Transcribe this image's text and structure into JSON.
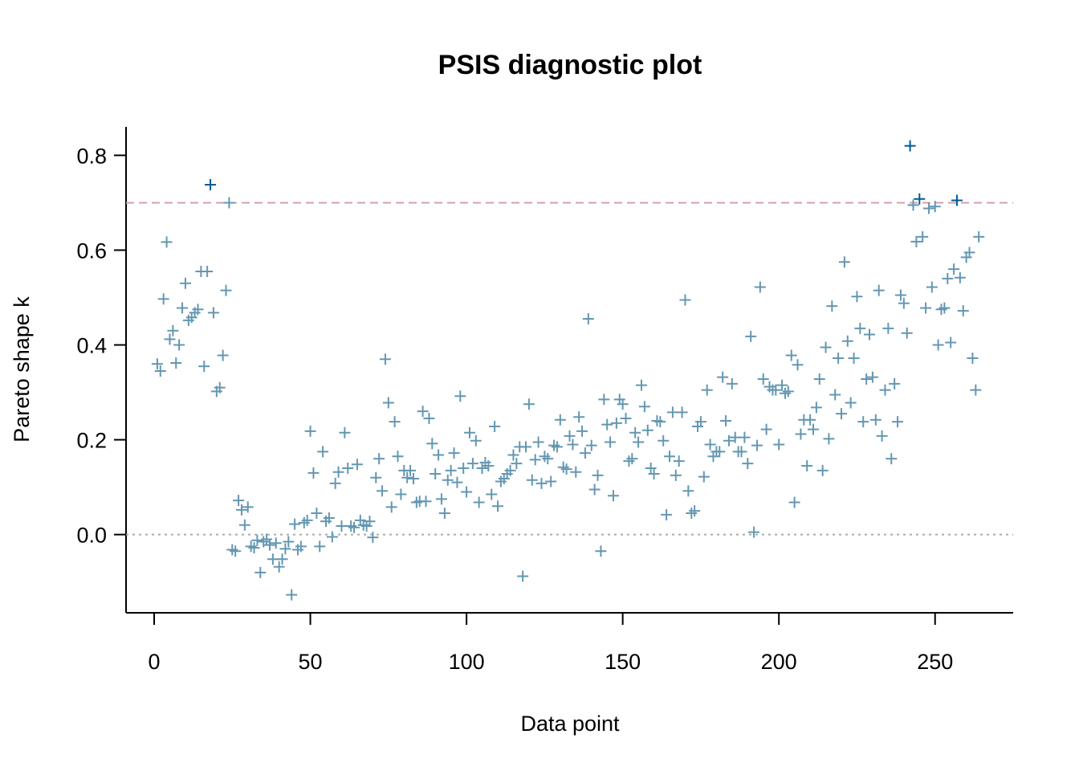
{
  "chart_data": {
    "type": "scatter",
    "title": "PSIS diagnostic plot",
    "xlabel": "Data point",
    "ylabel": "Pareto shape k",
    "xlim": [
      -9,
      275
    ],
    "ylim": [
      -0.165,
      0.86
    ],
    "xticks": [
      0,
      50,
      100,
      150,
      200,
      250
    ],
    "xtick_labels": [
      "0",
      "50",
      "100",
      "150",
      "200",
      "250"
    ],
    "yticks": [
      0.0,
      0.2,
      0.4,
      0.6,
      0.8
    ],
    "ytick_labels": [
      "0.0",
      "0.2",
      "0.4",
      "0.6",
      "0.8"
    ],
    "grid": false,
    "reference_lines": [
      {
        "y": 0.7,
        "style": "dashed",
        "color": "#d4a0aa"
      },
      {
        "y": 0.0,
        "style": "dotted",
        "color": "#aaaaaa"
      }
    ],
    "colors": {
      "normal": "#6497b1",
      "high": "#005b96"
    },
    "threshold": 0.7,
    "marker": "+",
    "x": [
      1,
      2,
      3,
      4,
      5,
      6,
      7,
      8,
      9,
      10,
      11,
      12,
      13,
      14,
      15,
      16,
      17,
      18,
      19,
      20,
      21,
      22,
      23,
      24,
      25,
      26,
      27,
      28,
      29,
      30,
      31,
      32,
      33,
      34,
      35,
      36,
      37,
      38,
      39,
      40,
      41,
      42,
      43,
      44,
      45,
      46,
      47,
      48,
      49,
      50,
      51,
      52,
      53,
      54,
      55,
      56,
      57,
      58,
      59,
      60,
      61,
      62,
      63,
      64,
      65,
      66,
      67,
      68,
      69,
      70,
      71,
      72,
      73,
      74,
      75,
      76,
      77,
      78,
      79,
      80,
      81,
      82,
      83,
      84,
      85,
      86,
      87,
      88,
      89,
      90,
      91,
      92,
      93,
      94,
      95,
      96,
      97,
      98,
      99,
      100,
      101,
      102,
      103,
      104,
      105,
      106,
      107,
      108,
      109,
      110,
      111,
      112,
      113,
      114,
      115,
      116,
      117,
      118,
      119,
      120,
      121,
      122,
      123,
      124,
      125,
      126,
      127,
      128,
      129,
      130,
      131,
      132,
      133,
      134,
      135,
      136,
      137,
      138,
      139,
      140,
      141,
      142,
      143,
      144,
      145,
      146,
      147,
      148,
      149,
      150,
      151,
      152,
      153,
      154,
      155,
      156,
      157,
      158,
      159,
      160,
      161,
      162,
      163,
      164,
      165,
      166,
      167,
      168,
      169,
      170,
      171,
      172,
      173,
      174,
      175,
      176,
      177,
      178,
      179,
      180,
      181,
      182,
      183,
      184,
      185,
      186,
      187,
      188,
      189,
      190,
      191,
      192,
      193,
      194,
      195,
      196,
      197,
      198,
      199,
      200,
      201,
      202,
      203,
      204,
      205,
      206,
      207,
      208,
      209,
      210,
      211,
      212,
      213,
      214,
      215,
      216,
      217,
      218,
      219,
      220,
      221,
      222,
      223,
      224,
      225,
      226,
      227,
      228,
      229,
      230,
      231,
      232,
      233,
      234,
      235,
      236,
      237,
      238,
      239,
      240,
      241,
      242,
      243,
      244,
      245,
      246,
      247,
      248,
      249,
      250,
      251,
      252,
      253,
      254,
      255,
      256,
      257,
      258,
      259,
      260,
      261,
      262,
      263,
      264
    ],
    "y": [
      0.36,
      0.345,
      0.497,
      0.617,
      0.412,
      0.43,
      0.362,
      0.4,
      0.478,
      0.53,
      0.452,
      0.458,
      0.468,
      0.475,
      0.555,
      0.355,
      0.555,
      0.738,
      0.468,
      0.302,
      0.31,
      0.378,
      0.515,
      0.7,
      -0.032,
      -0.035,
      0.072,
      0.052,
      0.02,
      0.058,
      -0.025,
      -0.028,
      -0.012,
      -0.08,
      -0.015,
      -0.01,
      -0.022,
      -0.052,
      -0.018,
      -0.068,
      -0.052,
      -0.03,
      -0.015,
      -0.127,
      0.022,
      -0.032,
      -0.025,
      0.025,
      0.03,
      0.218,
      0.13,
      0.045,
      -0.025,
      0.175,
      0.028,
      0.035,
      -0.005,
      0.108,
      0.132,
      0.018,
      0.215,
      0.14,
      0.018,
      0.015,
      0.148,
      0.03,
      0.02,
      0.018,
      0.028,
      -0.006,
      0.12,
      0.16,
      0.092,
      0.37,
      0.278,
      0.058,
      0.238,
      0.165,
      0.085,
      0.135,
      0.12,
      0.135,
      0.118,
      0.068,
      0.07,
      0.26,
      0.07,
      0.245,
      0.192,
      0.128,
      0.168,
      0.075,
      0.045,
      0.115,
      0.135,
      0.172,
      0.11,
      0.292,
      0.14,
      0.09,
      0.215,
      0.15,
      0.198,
      0.068,
      0.14,
      0.152,
      0.145,
      0.085,
      0.228,
      0.06,
      0.112,
      0.118,
      0.128,
      0.135,
      0.168,
      0.15,
      0.185,
      -0.088,
      0.185,
      0.275,
      0.115,
      0.158,
      0.195,
      0.108,
      0.165,
      0.16,
      0.112,
      0.188,
      0.185,
      0.242,
      0.142,
      0.138,
      0.208,
      0.19,
      0.132,
      0.248,
      0.218,
      0.172,
      0.455,
      0.188,
      0.095,
      0.125,
      -0.035,
      0.285,
      0.232,
      0.195,
      0.082,
      0.235,
      0.285,
      0.275,
      0.245,
      0.155,
      0.16,
      0.215,
      0.195,
      0.315,
      0.27,
      0.22,
      0.14,
      0.128,
      0.24,
      0.238,
      0.198,
      0.042,
      0.165,
      0.258,
      0.125,
      0.155,
      0.258,
      0.495,
      0.092,
      0.045,
      0.05,
      0.228,
      0.238,
      0.122,
      0.305,
      0.19,
      0.165,
      0.175,
      0.175,
      0.332,
      0.24,
      0.198,
      0.318,
      0.205,
      0.175,
      0.175,
      0.205,
      0.15,
      0.418,
      0.005,
      0.188,
      0.522,
      0.328,
      0.222,
      0.312,
      0.305,
      0.305,
      0.19,
      0.315,
      0.298,
      0.302,
      0.378,
      0.068,
      0.358,
      0.212,
      0.242,
      0.145,
      0.242,
      0.222,
      0.268,
      0.328,
      0.135,
      0.395,
      0.202,
      0.482,
      0.295,
      0.372,
      0.255,
      0.575,
      0.408,
      0.278,
      0.372,
      0.502,
      0.435,
      0.238,
      0.328,
      0.422,
      0.332,
      0.242,
      0.515,
      0.208,
      0.305,
      0.435,
      0.16,
      0.318,
      0.238,
      0.505,
      0.488,
      0.425,
      0.82,
      0.695,
      0.618,
      0.708,
      0.628,
      0.478,
      0.688,
      0.522,
      0.692,
      0.4,
      0.475,
      0.478,
      0.54,
      0.405,
      0.56,
      0.705,
      0.542,
      0.472,
      0.585,
      0.595,
      0.372,
      0.305,
      0.628
    ]
  }
}
